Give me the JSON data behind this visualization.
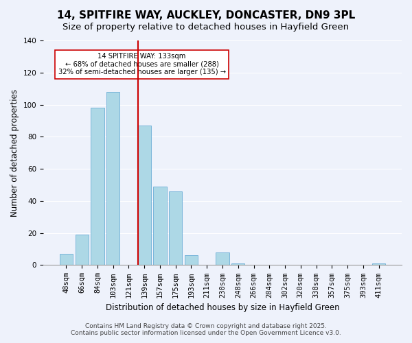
{
  "title": "14, SPITFIRE WAY, AUCKLEY, DONCASTER, DN9 3PL",
  "subtitle": "Size of property relative to detached houses in Hayfield Green",
  "xlabel": "Distribution of detached houses by size in Hayfield Green",
  "ylabel": "Number of detached properties",
  "bin_labels": [
    "48sqm",
    "66sqm",
    "84sqm",
    "103sqm",
    "121sqm",
    "139sqm",
    "157sqm",
    "175sqm",
    "193sqm",
    "211sqm",
    "230sqm",
    "248sqm",
    "266sqm",
    "284sqm",
    "302sqm",
    "320sqm",
    "338sqm",
    "357sqm",
    "375sqm",
    "393sqm",
    "411sqm"
  ],
  "bar_values": [
    7,
    19,
    98,
    108,
    0,
    87,
    49,
    46,
    6,
    0,
    8,
    1,
    0,
    0,
    0,
    0,
    0,
    0,
    0,
    0,
    1
  ],
  "bar_color": "#add8e6",
  "bar_edge_color": "#6baed6",
  "vline_x": 4.58,
  "vline_color": "#cc0000",
  "ylim": [
    0,
    140
  ],
  "yticks": [
    0,
    20,
    40,
    60,
    80,
    100,
    120,
    140
  ],
  "annotation_title": "14 SPITFIRE WAY: 133sqm",
  "annotation_line1": "← 68% of detached houses are smaller (288)",
  "annotation_line2": "32% of semi-detached houses are larger (135) →",
  "footer_line1": "Contains HM Land Registry data © Crown copyright and database right 2025.",
  "footer_line2": "Contains public sector information licensed under the Open Government Licence v3.0.",
  "background_color": "#eef2fb",
  "grid_color": "#ffffff",
  "title_fontsize": 11,
  "subtitle_fontsize": 9.5,
  "axis_label_fontsize": 8.5,
  "tick_fontsize": 7.5,
  "footer_fontsize": 6.5
}
